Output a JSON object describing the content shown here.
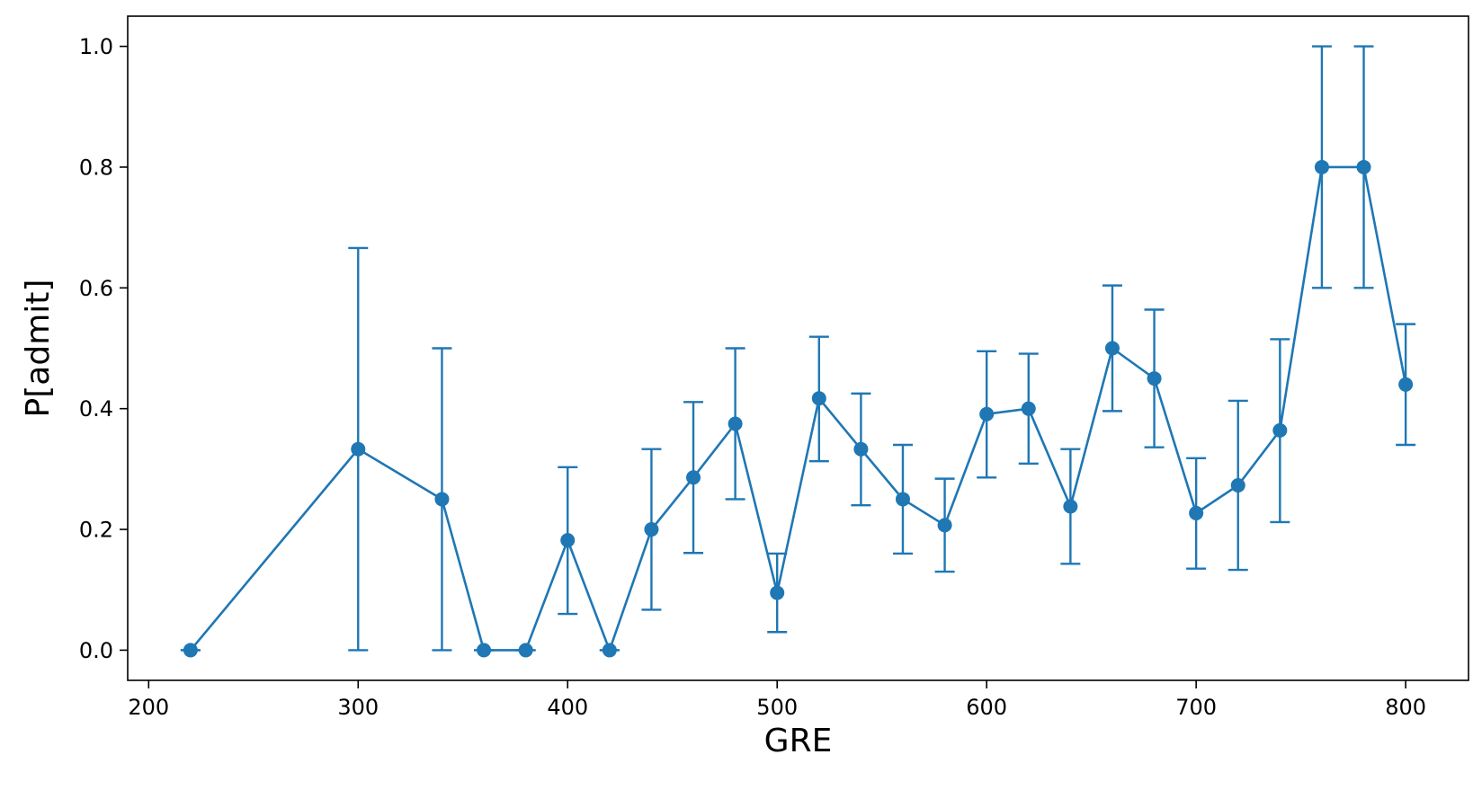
{
  "chart_data": {
    "type": "line",
    "xlabel": "GRE",
    "ylabel": "P[admit]",
    "xlim": [
      190,
      830
    ],
    "ylim": [
      -0.05,
      1.05
    ],
    "xticks": [
      200,
      300,
      400,
      500,
      600,
      700,
      800
    ],
    "xtick_labels": [
      "200",
      "300",
      "400",
      "500",
      "600",
      "700",
      "800"
    ],
    "yticks": [
      0.0,
      0.2,
      0.4,
      0.6,
      0.8,
      1.0
    ],
    "ytick_labels": [
      "0.0",
      "0.2",
      "0.4",
      "0.6",
      "0.8",
      "1.0"
    ],
    "grid": false,
    "color": "#1f77b4",
    "series": [
      {
        "x": [
          220,
          300,
          340,
          360,
          380,
          400,
          420,
          440,
          460,
          480,
          500,
          520,
          540,
          560,
          580,
          600,
          620,
          640,
          660,
          680,
          700,
          720,
          740,
          760,
          780,
          800
        ],
        "y": [
          0.0,
          0.333,
          0.25,
          0.0,
          0.0,
          0.182,
          0.0,
          0.2,
          0.286,
          0.375,
          0.095,
          0.417,
          0.333,
          0.25,
          0.207,
          0.391,
          0.4,
          0.238,
          0.5,
          0.45,
          0.227,
          0.273,
          0.364,
          0.8,
          0.8,
          0.44
        ],
        "yerr_low": [
          0.0,
          0.333,
          0.25,
          0.0,
          0.0,
          0.122,
          0.0,
          0.133,
          0.125,
          0.125,
          0.065,
          0.104,
          0.093,
          0.09,
          0.077,
          0.105,
          0.091,
          0.095,
          0.104,
          0.114,
          0.092,
          0.14,
          0.152,
          0.2,
          0.2,
          0.1
        ],
        "yerr_high": [
          0.0,
          0.333,
          0.25,
          0.0,
          0.0,
          0.121,
          0.0,
          0.133,
          0.125,
          0.125,
          0.065,
          0.102,
          0.092,
          0.09,
          0.077,
          0.104,
          0.091,
          0.095,
          0.104,
          0.114,
          0.091,
          0.14,
          0.151,
          0.2,
          0.2,
          0.1
        ]
      }
    ]
  }
}
